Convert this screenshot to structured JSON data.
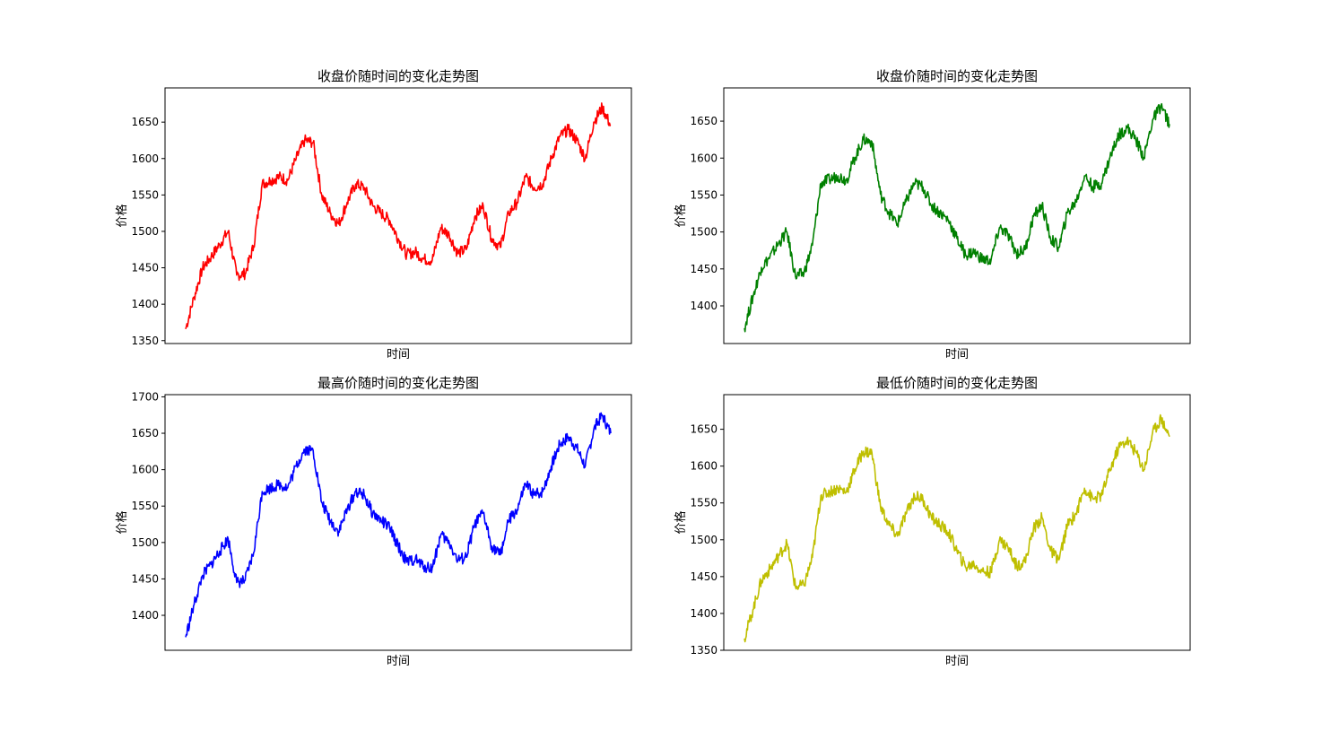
{
  "colors": {
    "c0": "#ff0000",
    "c1": "#008000",
    "c2": "#0000ff",
    "c3": "#bfbf00"
  },
  "chart_data": [
    {
      "type": "line",
      "title": "收盘价随时间的变化走势图",
      "xlabel": "时间",
      "ylabel": "价格",
      "color": "#ff0000",
      "ylim": [
        1346,
        1697
      ],
      "yticks": [
        1350,
        1400,
        1450,
        1500,
        1550,
        1600,
        1650
      ],
      "xticks": [],
      "series": [
        {
          "x": [
            0,
            10,
            20,
            30,
            40,
            50,
            60,
            70,
            80,
            90,
            100,
            110,
            120,
            130,
            140,
            150,
            160,
            170,
            180,
            190,
            200,
            210,
            220,
            230,
            240,
            250,
            260,
            270,
            280,
            290,
            300,
            310,
            320,
            330,
            340,
            350,
            360,
            370,
            380,
            390,
            400,
            410,
            420,
            430,
            440,
            450,
            460,
            470,
            480,
            490,
            500
          ],
          "values": [
            1366,
            1410,
            1450,
            1465,
            1482,
            1500,
            1440,
            1442,
            1480,
            1565,
            1570,
            1575,
            1570,
            1600,
            1625,
            1622,
            1550,
            1525,
            1510,
            1540,
            1565,
            1560,
            1535,
            1525,
            1515,
            1490,
            1468,
            1472,
            1462,
            1460,
            1505,
            1495,
            1470,
            1475,
            1520,
            1535,
            1490,
            1478,
            1525,
            1540,
            1575,
            1560,
            1565,
            1600,
            1630,
            1640,
            1625,
            1600,
            1650,
            1670,
            1645
          ]
        }
      ]
    },
    {
      "type": "line",
      "title": "收盘价随时间的变化走势图",
      "xlabel": "时间",
      "ylabel": "价格",
      "color": "#008000",
      "ylim": [
        1349,
        1695
      ],
      "yticks": [
        1400,
        1450,
        1500,
        1550,
        1600,
        1650
      ],
      "xticks": [],
      "series": [
        {
          "x": [
            0,
            10,
            20,
            30,
            40,
            50,
            60,
            70,
            80,
            90,
            100,
            110,
            120,
            130,
            140,
            150,
            160,
            170,
            180,
            190,
            200,
            210,
            220,
            230,
            240,
            250,
            260,
            270,
            280,
            290,
            300,
            310,
            320,
            330,
            340,
            350,
            360,
            370,
            380,
            390,
            400,
            410,
            420,
            430,
            440,
            450,
            460,
            470,
            480,
            490,
            500
          ],
          "values": [
            1370,
            1412,
            1452,
            1466,
            1484,
            1500,
            1440,
            1444,
            1482,
            1566,
            1571,
            1576,
            1570,
            1601,
            1625,
            1622,
            1551,
            1526,
            1511,
            1541,
            1566,
            1561,
            1536,
            1526,
            1516,
            1491,
            1469,
            1473,
            1463,
            1461,
            1506,
            1496,
            1471,
            1476,
            1521,
            1536,
            1491,
            1479,
            1526,
            1541,
            1576,
            1561,
            1566,
            1601,
            1631,
            1641,
            1626,
            1601,
            1651,
            1671,
            1646
          ]
        }
      ]
    },
    {
      "type": "line",
      "title": "最高价随时间的变化走势图",
      "xlabel": "时间",
      "ylabel": "价格",
      "color": "#0000ff",
      "ylim": [
        1352,
        1703
      ],
      "yticks": [
        1400,
        1450,
        1500,
        1550,
        1600,
        1650,
        1700
      ],
      "xticks": [],
      "series": [
        {
          "x": [
            0,
            10,
            20,
            30,
            40,
            50,
            60,
            70,
            80,
            90,
            100,
            110,
            120,
            130,
            140,
            150,
            160,
            170,
            180,
            190,
            200,
            210,
            220,
            230,
            240,
            250,
            260,
            270,
            280,
            290,
            300,
            310,
            320,
            330,
            340,
            350,
            360,
            370,
            380,
            390,
            400,
            410,
            420,
            430,
            440,
            450,
            460,
            470,
            480,
            490,
            500
          ],
          "values": [
            1370,
            1415,
            1455,
            1470,
            1488,
            1505,
            1445,
            1448,
            1486,
            1570,
            1575,
            1580,
            1575,
            1605,
            1628,
            1626,
            1555,
            1530,
            1515,
            1545,
            1570,
            1565,
            1540,
            1530,
            1520,
            1495,
            1473,
            1477,
            1467,
            1465,
            1510,
            1500,
            1475,
            1480,
            1525,
            1540,
            1495,
            1483,
            1530,
            1545,
            1580,
            1565,
            1570,
            1605,
            1635,
            1645,
            1630,
            1605,
            1655,
            1675,
            1650
          ]
        }
      ]
    },
    {
      "type": "line",
      "title": "最低价随时间的变化走势图",
      "xlabel": "时间",
      "ylabel": "价格",
      "color": "#bfbf00",
      "ylim": [
        1350,
        1697
      ],
      "yticks": [
        1350,
        1400,
        1450,
        1500,
        1550,
        1600,
        1650
      ],
      "xticks": [],
      "series": [
        {
          "x": [
            0,
            10,
            20,
            30,
            40,
            50,
            60,
            70,
            80,
            90,
            100,
            110,
            120,
            130,
            140,
            150,
            160,
            170,
            180,
            190,
            200,
            210,
            220,
            230,
            240,
            250,
            260,
            270,
            280,
            290,
            300,
            310,
            320,
            330,
            340,
            350,
            360,
            370,
            380,
            390,
            400,
            410,
            420,
            430,
            440,
            450,
            460,
            470,
            480,
            490,
            500
          ],
          "values": [
            1366,
            1405,
            1445,
            1460,
            1478,
            1495,
            1436,
            1438,
            1476,
            1560,
            1565,
            1570,
            1565,
            1596,
            1620,
            1618,
            1545,
            1520,
            1505,
            1535,
            1560,
            1555,
            1530,
            1520,
            1510,
            1485,
            1463,
            1467,
            1457,
            1456,
            1500,
            1490,
            1465,
            1470,
            1515,
            1530,
            1485,
            1473,
            1520,
            1535,
            1570,
            1555,
            1560,
            1595,
            1625,
            1635,
            1620,
            1595,
            1645,
            1665,
            1640
          ]
        }
      ]
    }
  ]
}
